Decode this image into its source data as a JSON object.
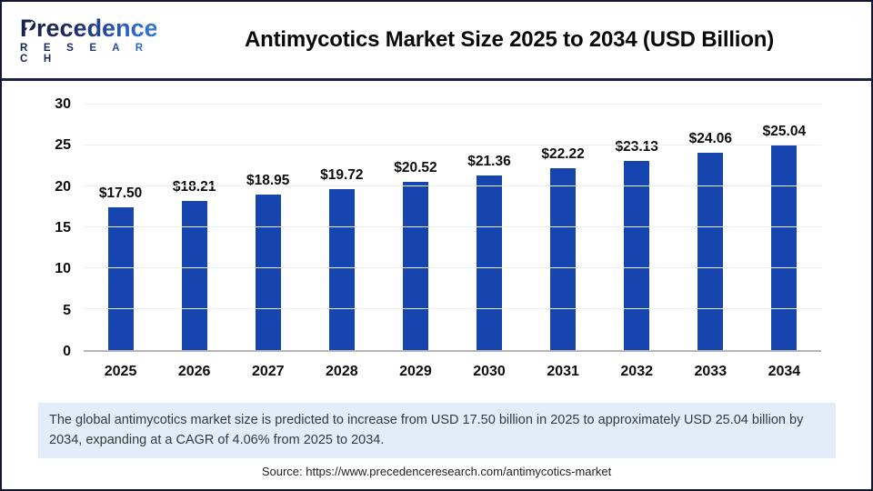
{
  "header": {
    "logo_name": "Precedence",
    "logo_subname": "R E S E A R C H",
    "title": "Antimycotics Market Size 2025 to 2034 (USD Billion)"
  },
  "chart_data": {
    "type": "bar",
    "title": "Antimycotics Market Size 2025 to 2034 (USD Billion)",
    "categories": [
      "2025",
      "2026",
      "2027",
      "2028",
      "2029",
      "2030",
      "2031",
      "2032",
      "2033",
      "2034"
    ],
    "values": [
      17.5,
      18.21,
      18.95,
      19.72,
      20.52,
      21.36,
      22.22,
      23.13,
      24.06,
      25.04
    ],
    "bar_labels": [
      "$17.50",
      "$18.21",
      "$18.95",
      "$19.72",
      "$20.52",
      "$21.36",
      "$22.22",
      "$23.13",
      "$24.06",
      "$25.04"
    ],
    "xlabel": "",
    "ylabel": "",
    "ylim": [
      0,
      30
    ],
    "yticks": [
      0,
      5,
      10,
      15,
      20,
      25,
      30
    ],
    "grid": true,
    "legend": false,
    "bar_color": "#1745b0",
    "unit": "USD Billion"
  },
  "footer": {
    "description": "The global antimycotics market size is predicted to increase from USD 17.50 billion in 2025 to approximately USD 25.04 billion by 2034, expanding at a CAGR of 4.06% from 2025 to 2034.",
    "source": "Source: https://www.precedenceresearch.com/antimycotics-market"
  },
  "colors": {
    "bar": "#1745b0",
    "divider": "#1b2342",
    "description_bg": "#e3edf9",
    "axis_line": "#b5b5b5",
    "gridline": "#efefef",
    "logo_navy": "#1b2a5e",
    "logo_blue": "#3379d6"
  }
}
